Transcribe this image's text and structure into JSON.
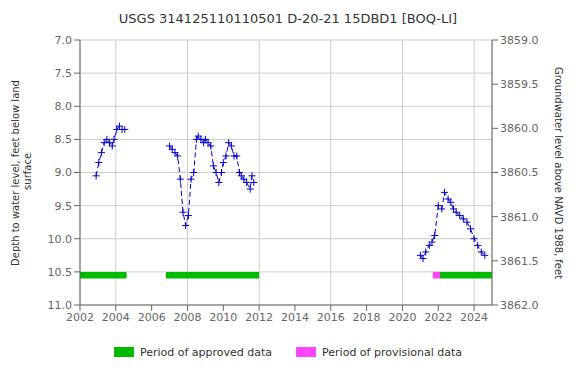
{
  "chart_data": {
    "type": "line",
    "title": "USGS 314125110110501 D-20-21 15DBD1 [BOQ-LI]",
    "ylabel": "Depth to water level, feet below land\n surface",
    "y2label": "Groundwater level above NAVD 1988, feet",
    "xlim": [
      2002,
      2025
    ],
    "xticks": [
      2002,
      2004,
      2006,
      2008,
      2010,
      2012,
      2014,
      2016,
      2018,
      2020,
      2022,
      2024
    ],
    "ylim": [
      11.0,
      7.0
    ],
    "yticks": [
      {
        "value": 7.0,
        "label": "7.0"
      },
      7.5,
      {
        "value": 8.0,
        "label": "8.0"
      },
      8.5,
      {
        "value": 9.0,
        "label": "9.0"
      },
      9.5,
      {
        "value": 10.0,
        "label": "10.0"
      },
      10.5,
      {
        "value": 11.0,
        "label": "11.0"
      }
    ],
    "y2lim": [
      3862.0,
      3859.0
    ],
    "y2ticks": [
      {
        "value": 3862.0,
        "label": "3862.0"
      },
      3861.5,
      {
        "value": 3861.0,
        "label": "3861.0"
      },
      3860.5,
      {
        "value": 3860.0,
        "label": "3860.0"
      },
      3859.5,
      {
        "value": 3859.0,
        "label": "3859.0"
      }
    ],
    "grid": true,
    "series": [
      {
        "color": "#0000cc",
        "marker": "+",
        "line_style": "dashed",
        "x": [
          2002.9,
          2003.05,
          2003.2,
          2003.35,
          2003.5,
          2003.65,
          2003.8,
          2003.9,
          2004.05,
          2004.2,
          2004.35,
          2004.5
        ],
        "values": [
          9.05,
          8.85,
          8.7,
          8.55,
          8.5,
          8.55,
          8.6,
          8.5,
          8.35,
          8.3,
          8.35,
          8.35
        ]
      },
      {
        "color": "#0000cc",
        "marker": "+",
        "line_style": "dashed",
        "x": [
          2007.0,
          2007.15,
          2007.3,
          2007.45,
          2007.6,
          2007.75,
          2007.9,
          2008.05,
          2008.2,
          2008.35,
          2008.5,
          2008.6,
          2008.75,
          2008.9,
          2009.0,
          2009.15,
          2009.3,
          2009.45,
          2009.6,
          2009.75,
          2009.9,
          2010.0,
          2010.15,
          2010.3,
          2010.45,
          2010.6,
          2010.75,
          2010.9,
          2011.0,
          2011.15,
          2011.3,
          2011.5,
          2011.6
        ],
        "values": [
          8.6,
          8.65,
          8.7,
          8.75,
          9.1,
          9.6,
          9.8,
          9.65,
          9.1,
          9.0,
          8.5,
          8.45,
          8.5,
          8.55,
          8.5,
          8.55,
          8.6,
          8.9,
          9.0,
          9.15,
          9.0,
          8.85,
          8.75,
          8.55,
          8.6,
          8.75,
          8.75,
          9.0,
          9.05,
          9.1,
          9.15,
          9.25,
          9.05
        ]
      },
      {
        "color": "#0000cc",
        "marker": "+",
        "line_style": "dashed",
        "x": [
          2011.7
        ],
        "values": [
          9.15
        ]
      },
      {
        "color": "#0000cc",
        "marker": "+",
        "line_style": "dashed",
        "x": [
          2021.0,
          2021.15,
          2021.3,
          2021.5,
          2021.65,
          2021.8,
          2022.0,
          2022.2,
          2022.35,
          2022.55,
          2022.7,
          2022.85,
          2023.0,
          2023.2,
          2023.4,
          2023.6,
          2023.8,
          2024.0,
          2024.2,
          2024.4,
          2024.6
        ],
        "values": [
          10.25,
          10.3,
          10.2,
          10.1,
          10.05,
          9.95,
          9.5,
          9.55,
          9.3,
          9.4,
          9.45,
          9.55,
          9.6,
          9.65,
          9.7,
          9.75,
          9.85,
          10.0,
          10.1,
          10.2,
          10.25
        ]
      }
    ],
    "periods": {
      "y_range": [
        10.5,
        10.6
      ],
      "groups": [
        {
          "name": "Period of approved data",
          "color": "#00bb00",
          "ranges": [
            [
              2002.0,
              2004.6
            ],
            [
              2006.8,
              2012.0
            ],
            [
              2022.1,
              2025.0
            ]
          ]
        },
        {
          "name": "Period of provisional data",
          "color": "#ff44ff",
          "ranges": [
            [
              2021.7,
              2022.1
            ]
          ]
        }
      ]
    }
  }
}
